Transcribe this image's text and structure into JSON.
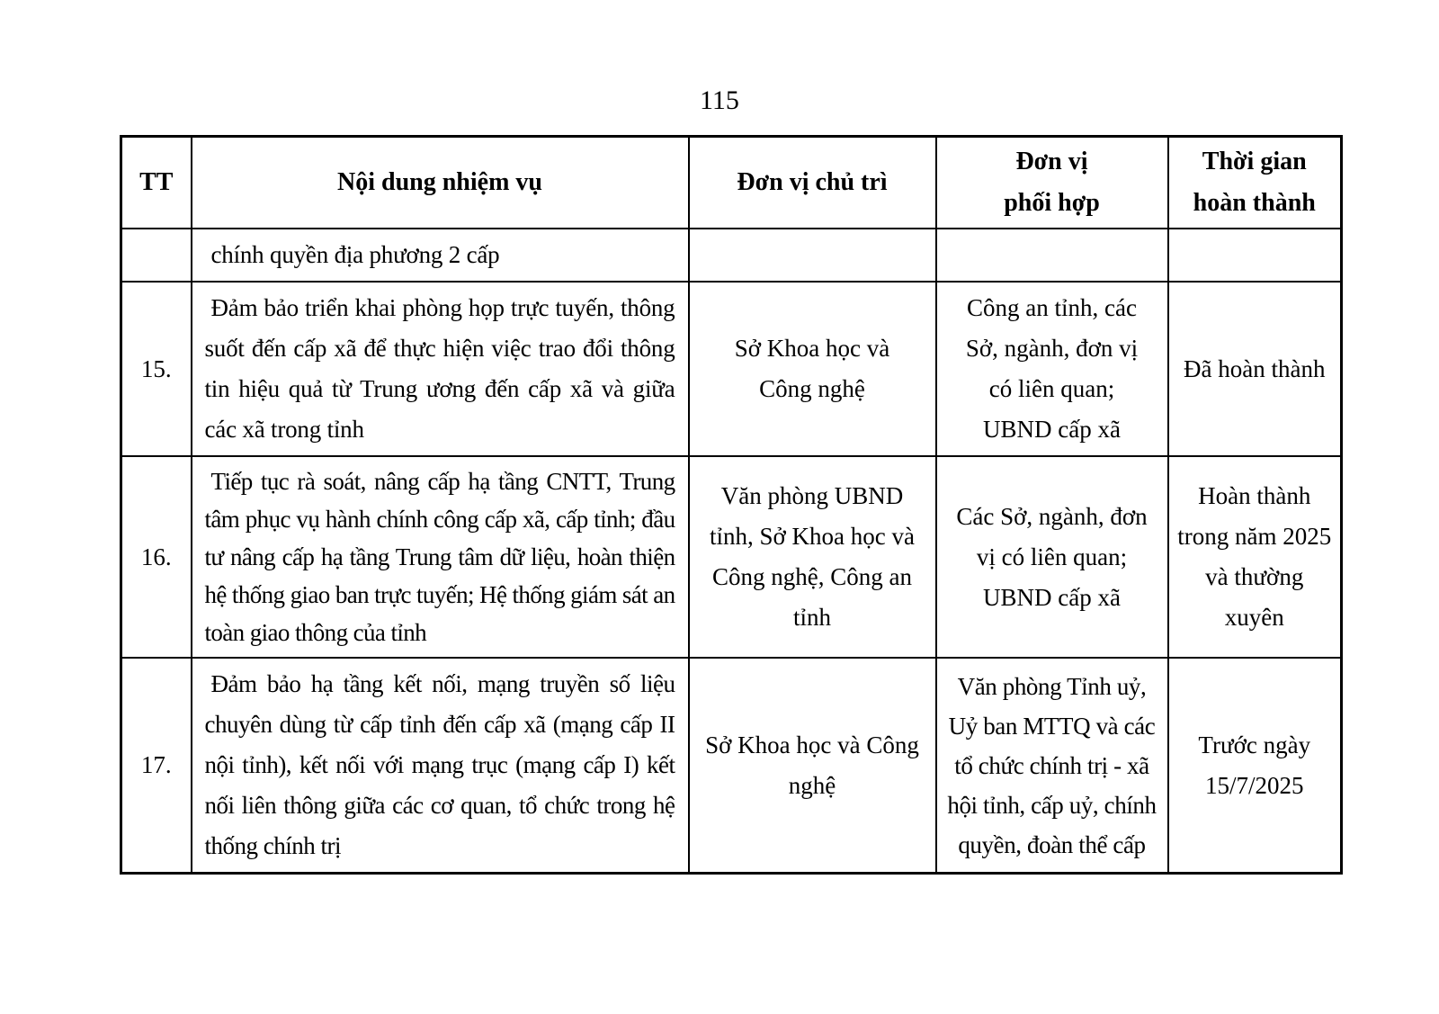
{
  "page_number": "115",
  "colors": {
    "background": "#ffffff",
    "text": "#000000",
    "border": "#000000"
  },
  "table": {
    "columns": [
      "TT",
      "Nội dung nhiệm vụ",
      "Đơn vị chủ trì",
      "Đơn vị\nphối hợp",
      "Thời gian\nhoàn thành"
    ],
    "rows": [
      {
        "tt": "",
        "task": "chính quyền địa phương 2 cấp",
        "lead": "",
        "coord": "",
        "time": ""
      },
      {
        "tt": "15.",
        "task": "Đảm bảo triển khai phòng họp trực tuyến, thông suốt đến cấp xã để thực hiện việc trao đổi thông tin hiệu quả từ Trung ương đến cấp xã và giữa các xã trong tỉnh",
        "lead": "Sở Khoa học và\nCông nghệ",
        "coord": "Công an tỉnh, các\nSở, ngành, đơn vị\ncó liên quan;\nUBND cấp xã",
        "time": "Đã hoàn thành"
      },
      {
        "tt": "16.",
        "task": "Tiếp tục rà soát, nâng cấp hạ tầng CNTT, Trung tâm phục vụ hành chính công cấp xã, cấp tỉnh; đầu tư nâng cấp hạ tầng Trung tâm dữ liệu, hoàn thiện hệ thống giao ban trực tuyến; Hệ thống giám sát an toàn giao thông của tỉnh",
        "lead": "Văn phòng UBND\ntỉnh, Sở Khoa học và\nCông nghệ, Công an\ntỉnh",
        "coord": "Các Sở, ngành, đơn\nvị có liên quan;\nUBND cấp xã",
        "time": "Hoàn thành\ntrong năm 2025\nvà thường\nxuyên"
      },
      {
        "tt": "17.",
        "task": "Đảm bảo hạ tầng kết nối, mạng truyền số liệu chuyên dùng từ cấp tỉnh đến cấp xã (mạng cấp II nội tỉnh), kết nối với mạng trục (mạng cấp I) kết nối liên thông giữa các cơ quan, tổ chức trong hệ thống chính trị",
        "lead": "Sở Khoa học và Công\nnghệ",
        "coord": "Văn phòng Tỉnh uỷ,\nUỷ ban MTTQ và các\ntổ chức chính trị - xã\nhội tỉnh, cấp uỷ, chính\nquyền, đoàn thể cấp",
        "time": "Trước ngày\n15/7/2025"
      }
    ]
  }
}
